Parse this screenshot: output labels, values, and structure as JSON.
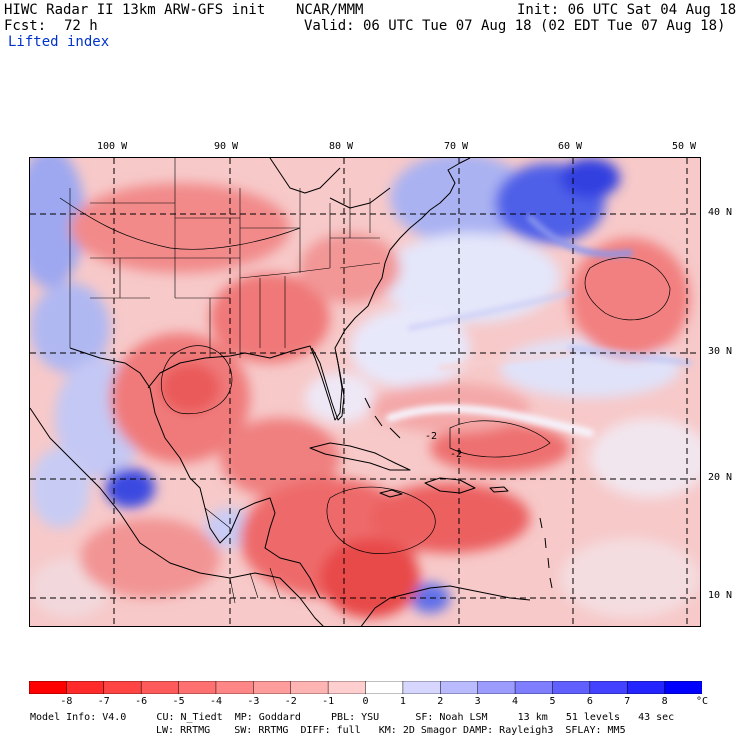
{
  "header": {
    "model_title": "HIWC Radar II 13km ARW-GFS init",
    "org": "NCAR/MMM",
    "init": "Init: 06 UTC Sat 04 Aug 18",
    "fcst_label": "Fcst:",
    "fcst_value": "72 h",
    "valid": "Valid: 06 UTC Tue 07 Aug 18 (02 EDT Tue 07 Aug 18)",
    "field": "Lifted index"
  },
  "map": {
    "lon_labels": [
      "100 W",
      "90 W",
      "80 W",
      "70 W",
      "60 W",
      "50 W"
    ],
    "lat_labels": [
      "40 N",
      "30 N",
      "20 N",
      "10 N"
    ],
    "contour_labels": [
      "-2",
      "-2"
    ]
  },
  "colorbar": {
    "unit": "°C",
    "ticks": [
      "-8",
      "-7",
      "-6",
      "-5",
      "-4",
      "-3",
      "-2",
      "-1",
      "0",
      "1",
      "2",
      "3",
      "4",
      "5",
      "6",
      "7",
      "8"
    ],
    "colors": [
      "#ff0000",
      "#ff2a2a",
      "#ff4444",
      "#ff5a5a",
      "#ff7070",
      "#ff8686",
      "#ff9c9c",
      "#ffb4b4",
      "#ffcece",
      "#ffffff",
      "#d6d6ff",
      "#babaff",
      "#9c9cff",
      "#7e7eff",
      "#6060ff",
      "#4242ff",
      "#2424ff",
      "#0000ff"
    ]
  },
  "footer": {
    "line1": "Model Info: V4.0     CU: N_Tiedt  MP: Goddard     PBL: YSU      SF: Noah LSM     13 km   51 levels   43 sec",
    "line2": "LW: RRTMG    SW: RRTMG  DIFF: full   KM: 2D Smagor DAMP: Rayleigh3  SFLAY: MM5"
  }
}
